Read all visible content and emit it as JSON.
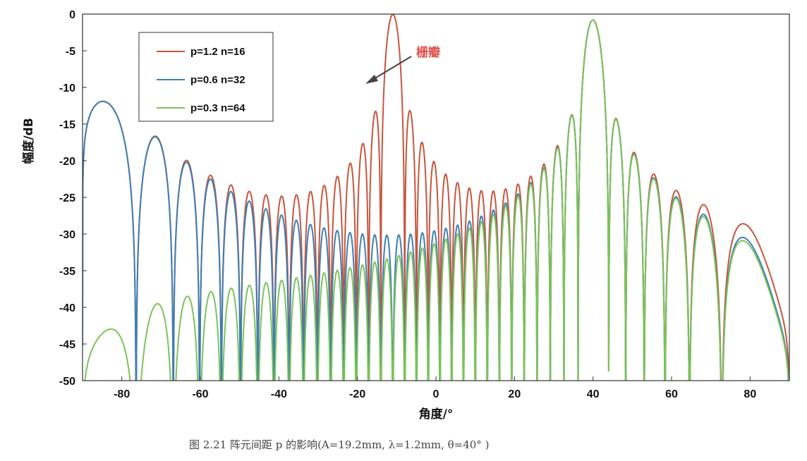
{
  "chart_data": {
    "type": "line",
    "xlabel": "角度/°",
    "ylabel": "幅度/dB",
    "xlim": [
      -90,
      90
    ],
    "ylim": [
      -50,
      0
    ],
    "xticks": [
      -80,
      -60,
      -40,
      -20,
      0,
      20,
      40,
      60,
      80
    ],
    "yticks": [
      0,
      -5,
      -10,
      -15,
      -20,
      -25,
      -30,
      -35,
      -40,
      -45,
      -50
    ],
    "grid": false,
    "legend_position": "top-left",
    "annotation": {
      "text": "栅瓣",
      "points_to": {
        "x": -18,
        "y": -9
      }
    },
    "caption": "图 2.21 阵元间距 p 的影响(A=19.2mm, λ=1.2mm, θ=40° )",
    "series": [
      {
        "name": "p=1.2 n=16",
        "color": "#c8553d",
        "p_lambda": 1.2,
        "n": 16,
        "steer_deg": 40,
        "peaks": [
          {
            "x": -21.7,
            "y": 0
          },
          {
            "x": 40,
            "y": -4.7
          }
        ]
      },
      {
        "name": "p=0.6 n=32",
        "color": "#3d7fb5",
        "p_lambda": 0.6,
        "n": 32,
        "steer_deg": 40,
        "peaks": [
          {
            "x": 40,
            "y": 0
          }
        ]
      },
      {
        "name": "p=0.3 n=64",
        "color": "#7cc35a",
        "p_lambda": 0.3,
        "n": 64,
        "steer_deg": 40,
        "peaks": [
          {
            "x": 40,
            "y": 0
          }
        ]
      }
    ]
  }
}
